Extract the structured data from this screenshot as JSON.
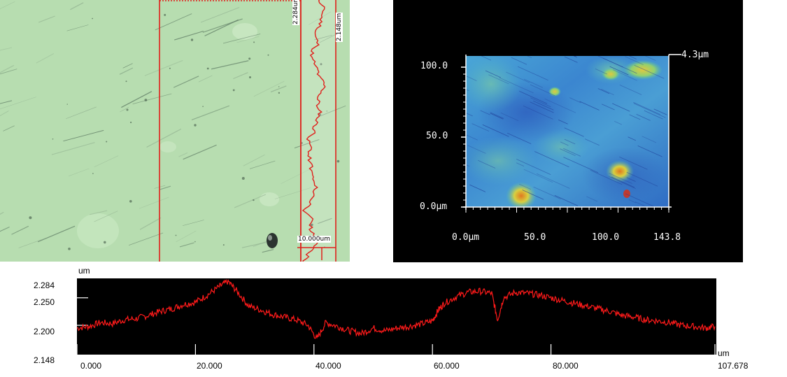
{
  "micrograph": {
    "profile_max_label": "2.284um",
    "profile_min_label": "2.148um",
    "scale_bar_label": "10.000um",
    "colors": {
      "background": "#b7ddb0",
      "overlay": "#e0201c"
    }
  },
  "heightmap": {
    "y_ticks": [
      "100.0",
      "50.0",
      "0.0µm"
    ],
    "x_ticks": [
      "0.0µm",
      "50.0",
      "100.0",
      "143.8"
    ],
    "z_max_label": "4.3µm",
    "colors": {
      "background": "#000000",
      "low": "#2a6fd0",
      "mid": "#58b8d8",
      "high": "#e0d040",
      "peak": "#e08020"
    }
  },
  "chart_data": {
    "type": "line",
    "title": "",
    "xlabel": "um",
    "ylabel": "um",
    "xlim": [
      0,
      107.678
    ],
    "ylim": [
      2.148,
      2.284
    ],
    "y_ticks": [
      "2.284",
      "2.250",
      "2.200",
      "2.148"
    ],
    "x_ticks": [
      "0.000",
      "20.000",
      "40.000",
      "60.000",
      "80.000",
      "107.678"
    ],
    "grid": false,
    "series": [
      {
        "color": "#ff1a1a",
        "x": [
          0,
          2,
          4,
          6,
          8,
          10,
          12,
          14,
          16,
          18,
          20,
          22,
          24,
          25.5,
          27,
          29,
          31,
          33,
          35,
          37,
          39,
          40.5,
          42,
          44,
          46,
          48,
          50,
          52,
          54,
          56,
          58,
          60,
          61,
          62,
          64,
          66,
          68,
          70,
          71,
          72,
          74,
          76,
          78,
          80,
          82,
          84,
          86,
          88,
          90,
          92,
          94,
          96,
          98,
          100,
          102,
          104,
          106,
          107.678
        ],
        "y": [
          2.195,
          2.198,
          2.205,
          2.203,
          2.21,
          2.212,
          2.218,
          2.225,
          2.23,
          2.238,
          2.242,
          2.255,
          2.27,
          2.28,
          2.262,
          2.235,
          2.228,
          2.22,
          2.215,
          2.21,
          2.2,
          2.175,
          2.205,
          2.198,
          2.19,
          2.185,
          2.195,
          2.19,
          2.195,
          2.198,
          2.202,
          2.208,
          2.228,
          2.24,
          2.252,
          2.26,
          2.262,
          2.258,
          2.21,
          2.25,
          2.26,
          2.258,
          2.255,
          2.25,
          2.245,
          2.24,
          2.235,
          2.23,
          2.225,
          2.218,
          2.215,
          2.21,
          2.208,
          2.205,
          2.2,
          2.198,
          2.195,
          2.198
        ]
      }
    ]
  }
}
